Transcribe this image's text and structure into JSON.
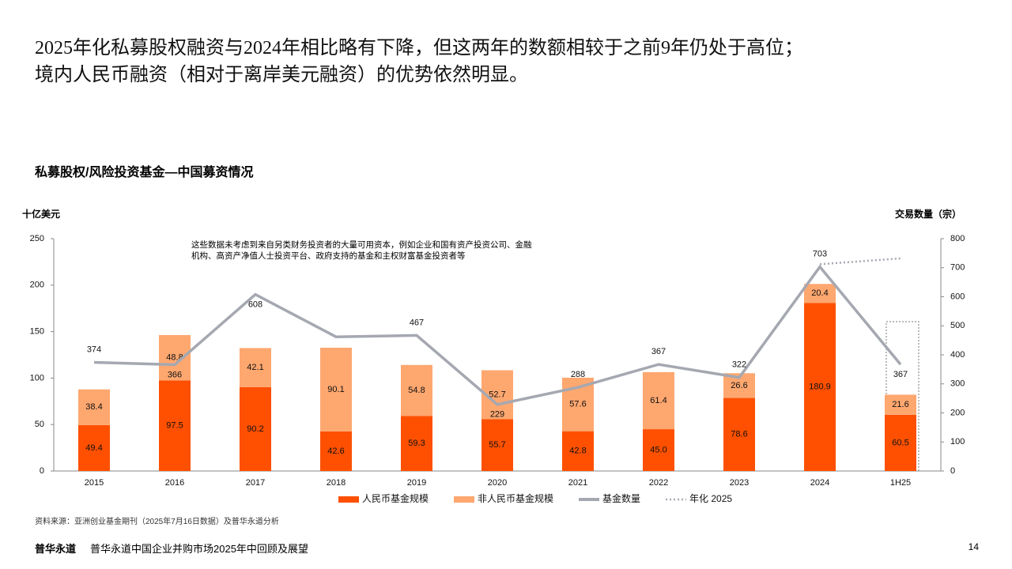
{
  "header": {
    "lines": [
      "2025年化私募股权融资与2024年相比略有下降，但这两年的数额相较于之前9年仍处于高位；",
      "境内人民币融资（相对于离岸美元融资）的优势依然明显。"
    ]
  },
  "chart_data": {
    "type": "stacked-bar-line",
    "title": "私募股权/风险投资基金—中国募资情况",
    "y_label": "十亿美元",
    "y2_label": "交易数量（宗）",
    "annotation": "这些数据未考虑到来自另类财务投资者的大量可用资本，例如企业和国有资产投资公司、金融机构、高资产净值人士投资平台、政府支持的基金和主权财富基金投资者等",
    "categories": [
      "2015",
      "2016",
      "2017",
      "2018",
      "2019",
      "2020",
      "2021",
      "2022",
      "2023",
      "2024",
      "1H25"
    ],
    "series": [
      {
        "name": "人民币基金规模",
        "type": "bar",
        "color": "#fe5000",
        "values": [
          49.4,
          97.5,
          90.2,
          42.6,
          59.3,
          55.7,
          42.8,
          45.0,
          78.6,
          180.9,
          60.5
        ],
        "value_labels": [
          "49.4",
          "97.5",
          "90.2",
          "42.6",
          "59.3",
          "55.7",
          "42.8",
          "45.0",
          "78.6",
          "180.9",
          "60.5"
        ]
      },
      {
        "name": "非人民币基金规模",
        "type": "bar",
        "color": "#fea76f",
        "values": [
          38.4,
          48.8,
          42.1,
          90.1,
          54.8,
          52.7,
          57.6,
          61.4,
          26.6,
          20.4,
          21.6
        ],
        "value_labels": [
          "38.4",
          "48.8",
          "42.1",
          "90.1",
          "54.8",
          "52.7",
          "57.6",
          "61.4",
          "26.6",
          "20.4",
          "21.6"
        ]
      },
      {
        "name": "基金数量",
        "type": "line",
        "axis": "y2",
        "color": "#a5a8b1",
        "values": [
          374,
          366,
          608,
          462,
          467,
          229,
          288,
          367,
          322,
          703,
          367
        ],
        "value_labels": [
          "374",
          "366",
          "608",
          null,
          "467",
          "229",
          "288",
          "367",
          "322",
          "703",
          "367"
        ]
      },
      {
        "name": "年化 2025",
        "type": "dotted-line",
        "axis": "y2",
        "color": "#a5a8b1",
        "values": [
          null,
          null,
          null,
          null,
          null,
          null,
          null,
          null,
          null,
          712,
          732
        ]
      }
    ],
    "ylim": [
      0,
      250
    ],
    "yticks": [
      0,
      50,
      100,
      150,
      200,
      250
    ],
    "y2lim": [
      0,
      800
    ],
    "y2ticks": [
      0,
      100,
      200,
      300,
      400,
      500,
      600,
      700,
      800
    ]
  },
  "footer": {
    "source": "资料来源：亚洲创业基金期刊（2025年7月16日数据）及普华永道分析",
    "brand": "普华永道",
    "report": "普华永道中国企业并购市场2025年中回顾及展望",
    "page": "14"
  }
}
